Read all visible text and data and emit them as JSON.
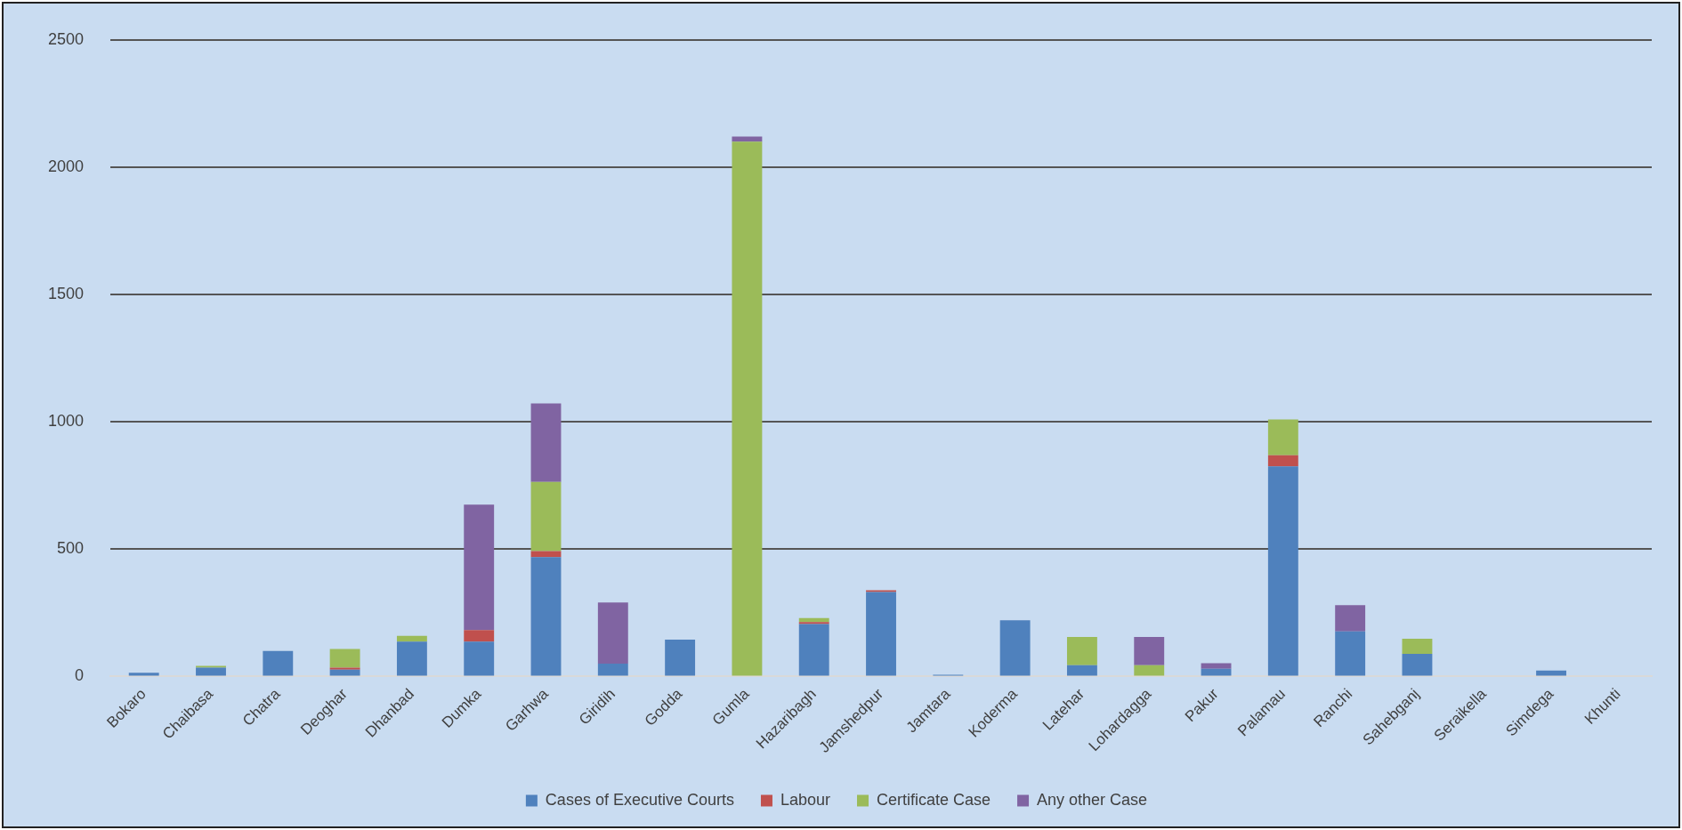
{
  "chart_data": {
    "type": "bar",
    "stacked": true,
    "categories": [
      "Bokaro",
      "Chaibasa",
      "Chatra",
      "Deoghar",
      "Dhanbad",
      "Dumka",
      "Garhwa",
      "Giridih",
      "Godda",
      "Gumla",
      "Hazaribagh",
      "Jamshedpur",
      "Jamtara",
      "Koderma",
      "Latehar",
      "Lohardagga",
      "Pakur",
      "Palamau",
      "Ranchi",
      "Sahebganj",
      "Seraikella",
      "Simdega",
      "Khunti"
    ],
    "series": [
      {
        "name": "Cases of Executive Courts",
        "color": "#4f81bd",
        "values": [
          15,
          35,
          100,
          27,
          137,
          137,
          469,
          50,
          145,
          0,
          206,
          332,
          7,
          221,
          44,
          0,
          30,
          825,
          177,
          89,
          0,
          23,
          0
        ]
      },
      {
        "name": "Labour",
        "color": "#c0504d",
        "values": [
          0,
          0,
          0,
          8,
          0,
          45,
          23,
          0,
          0,
          0,
          8,
          7,
          0,
          0,
          0,
          0,
          0,
          44,
          0,
          0,
          0,
          0,
          0
        ]
      },
      {
        "name": "Certificate Case",
        "color": "#9bbb59",
        "values": [
          0,
          7,
          0,
          73,
          23,
          0,
          272,
          0,
          0,
          2100,
          15,
          0,
          0,
          0,
          111,
          44,
          0,
          140,
          0,
          59,
          0,
          0,
          0
        ]
      },
      {
        "name": "Any other Case",
        "color": "#8064a2",
        "values": [
          0,
          0,
          0,
          0,
          0,
          493,
          308,
          241,
          0,
          20,
          0,
          0,
          0,
          0,
          0,
          111,
          22,
          0,
          103,
          0,
          0,
          0,
          0
        ]
      }
    ],
    "ylim": [
      0,
      2500
    ],
    "yticks": [
      0,
      500,
      1000,
      1500,
      2000,
      2500
    ],
    "grid": "y",
    "legend": "bottom"
  }
}
